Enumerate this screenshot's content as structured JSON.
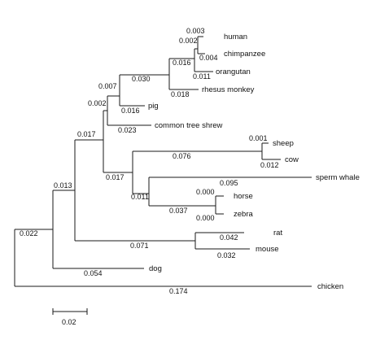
{
  "taxa": {
    "human": "human",
    "chimpanzee": "chimpanzee",
    "orangutan": "orangutan",
    "rhesus_monkey": "rhesus monkey",
    "pig": "pig",
    "common_tree_shrew": "common tree shrew",
    "sheep": "sheep",
    "cow": "cow",
    "sperm_whale": "sperm whale",
    "horse": "horse",
    "zebra": "zebra",
    "rat": "rat",
    "mouse": "mouse",
    "dog": "dog",
    "chicken": "chicken"
  },
  "branch_lengths": {
    "human": "0.003",
    "chimp_human": "0.002",
    "chimpanzee": "0.004",
    "great_apes": "0.016",
    "orangutan": "0.011",
    "primates": "0.030",
    "rhesus_monkey": "0.018",
    "primates_pig": "0.007",
    "pig": "0.016",
    "tree_shrew_group": "0.002",
    "common_tree_shrew": "0.023",
    "euarchonto_laurasia": "0.017",
    "sheep": "0.001",
    "ruminants": "0.076",
    "cow": "0.012",
    "laurasia": "0.017",
    "sperm_whale": "0.095",
    "horse": "0.000",
    "cetartio_perisso": "0.011",
    "equids": "0.037",
    "zebra": "0.000",
    "eutheria": "0.013",
    "rat": "0.042",
    "rodents": "0.071",
    "mouse": "0.032",
    "mammals_root": "0.022",
    "dog": "0.054",
    "chicken": "0.174"
  },
  "scale_bar": {
    "label": "0.02"
  }
}
